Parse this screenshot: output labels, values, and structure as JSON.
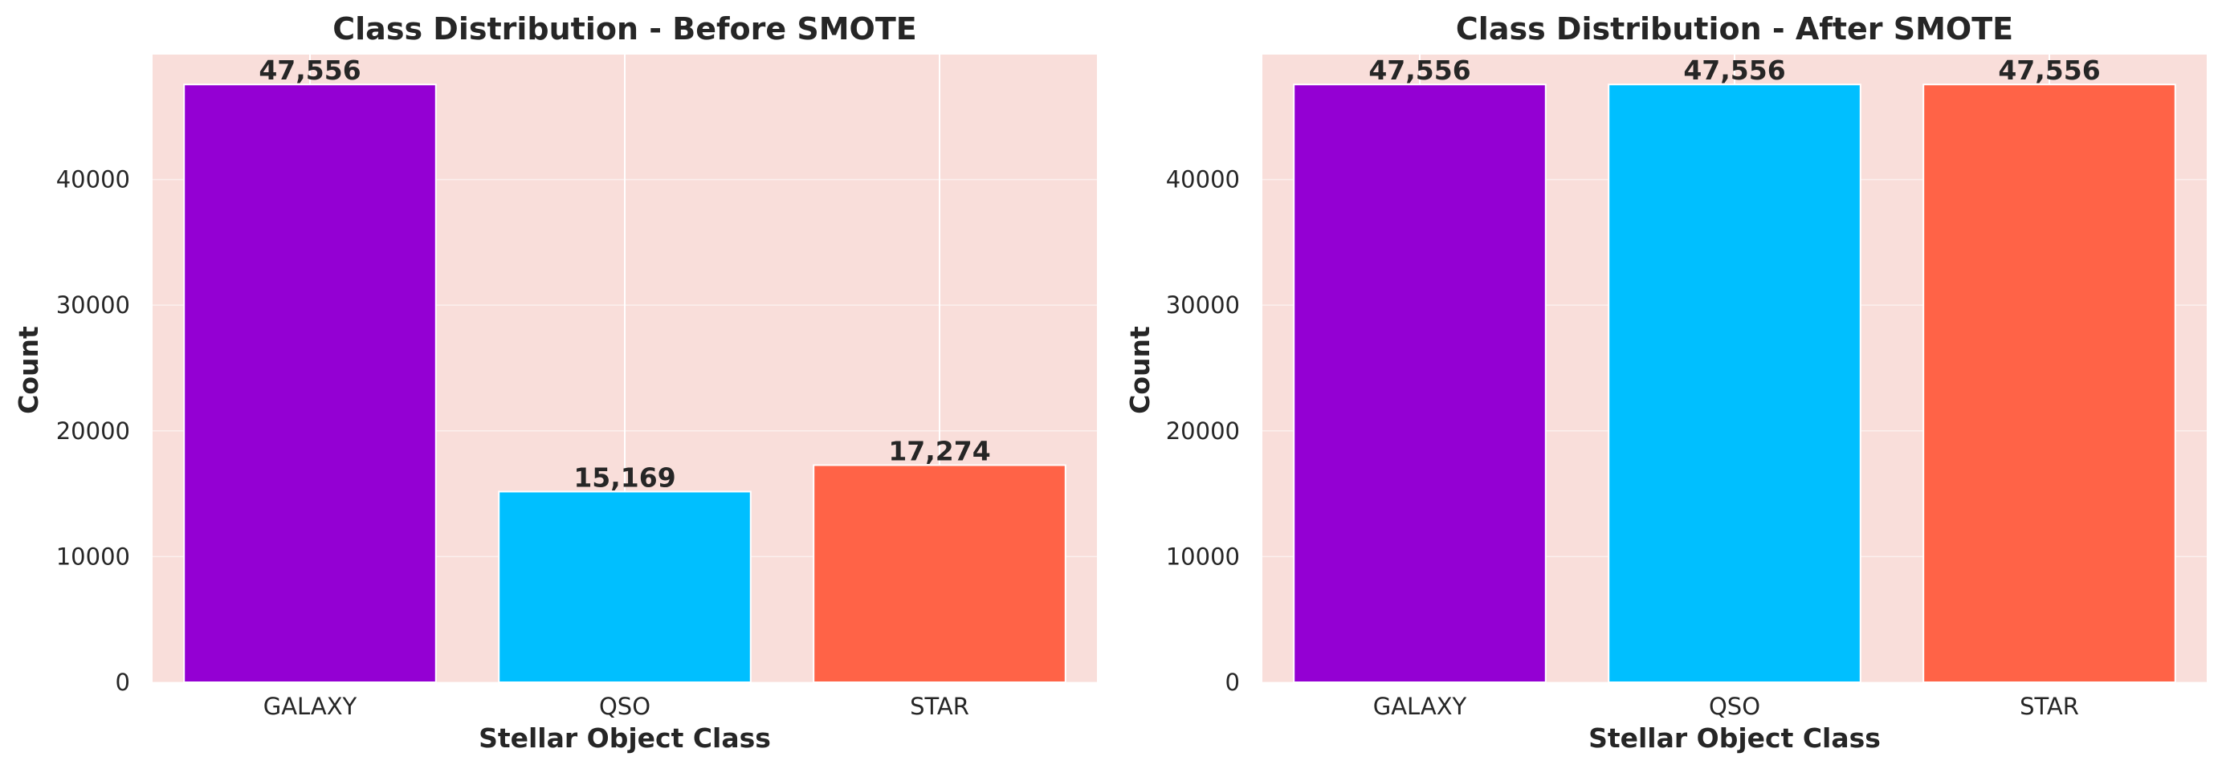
{
  "chart_data": [
    {
      "type": "bar",
      "title": "Class Distribution - Before SMOTE",
      "xlabel": "Stellar Object Class",
      "ylabel": "Count",
      "categories": [
        "GALAXY",
        "QSO",
        "STAR"
      ],
      "values": [
        47556,
        15169,
        17274
      ],
      "value_labels": [
        "47,556",
        "15,169",
        "17,274"
      ],
      "colors": [
        "#9400D3",
        "#00BFFF",
        "#FF6347"
      ],
      "ylim": [
        0,
        49933.8
      ],
      "yticks": [
        0,
        10000,
        20000,
        30000,
        40000
      ],
      "ytick_labels": [
        "0",
        "10000",
        "20000",
        "30000",
        "40000"
      ],
      "grid": true,
      "background": "#F9DEDA"
    },
    {
      "type": "bar",
      "title": "Class Distribution - After SMOTE",
      "xlabel": "Stellar Object Class",
      "ylabel": "Count",
      "categories": [
        "GALAXY",
        "QSO",
        "STAR"
      ],
      "values": [
        47556,
        47556,
        47556
      ],
      "value_labels": [
        "47,556",
        "47,556",
        "47,556"
      ],
      "colors": [
        "#9400D3",
        "#00BFFF",
        "#FF6347"
      ],
      "ylim": [
        0,
        49933.8
      ],
      "yticks": [
        0,
        10000,
        20000,
        30000,
        40000
      ],
      "ytick_labels": [
        "0",
        "10000",
        "20000",
        "30000",
        "40000"
      ],
      "grid": true,
      "background": "#F9DEDA"
    }
  ]
}
